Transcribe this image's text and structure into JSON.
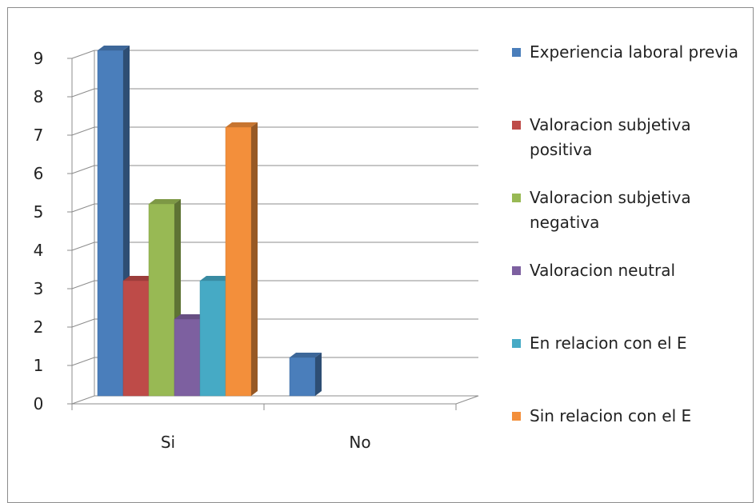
{
  "chart_data": {
    "type": "bar",
    "categories": [
      "Si",
      "No"
    ],
    "ylim": [
      0,
      9
    ],
    "yticks": [
      0,
      1,
      2,
      3,
      4,
      5,
      6,
      7,
      8,
      9
    ],
    "grid": true,
    "legend_position": "right",
    "series": [
      {
        "name": "Experiencia laboral previa",
        "values": [
          9,
          1
        ],
        "color": "#4a7ebb"
      },
      {
        "name": "Valoracion subjetiva positiva",
        "values": [
          3,
          null
        ],
        "color": "#be4b48"
      },
      {
        "name": "Valoracion subjetiva negativa",
        "values": [
          5,
          null
        ],
        "color": "#98b954"
      },
      {
        "name": "Valoracion neutral",
        "values": [
          2,
          null
        ],
        "color": "#7d60a0"
      },
      {
        "name": "En relacion con el E",
        "values": [
          3,
          null
        ],
        "color": "#46aac5"
      },
      {
        "name": "Sin relacion con el E",
        "values": [
          7,
          null
        ],
        "color": "#f38f3b"
      }
    ]
  }
}
